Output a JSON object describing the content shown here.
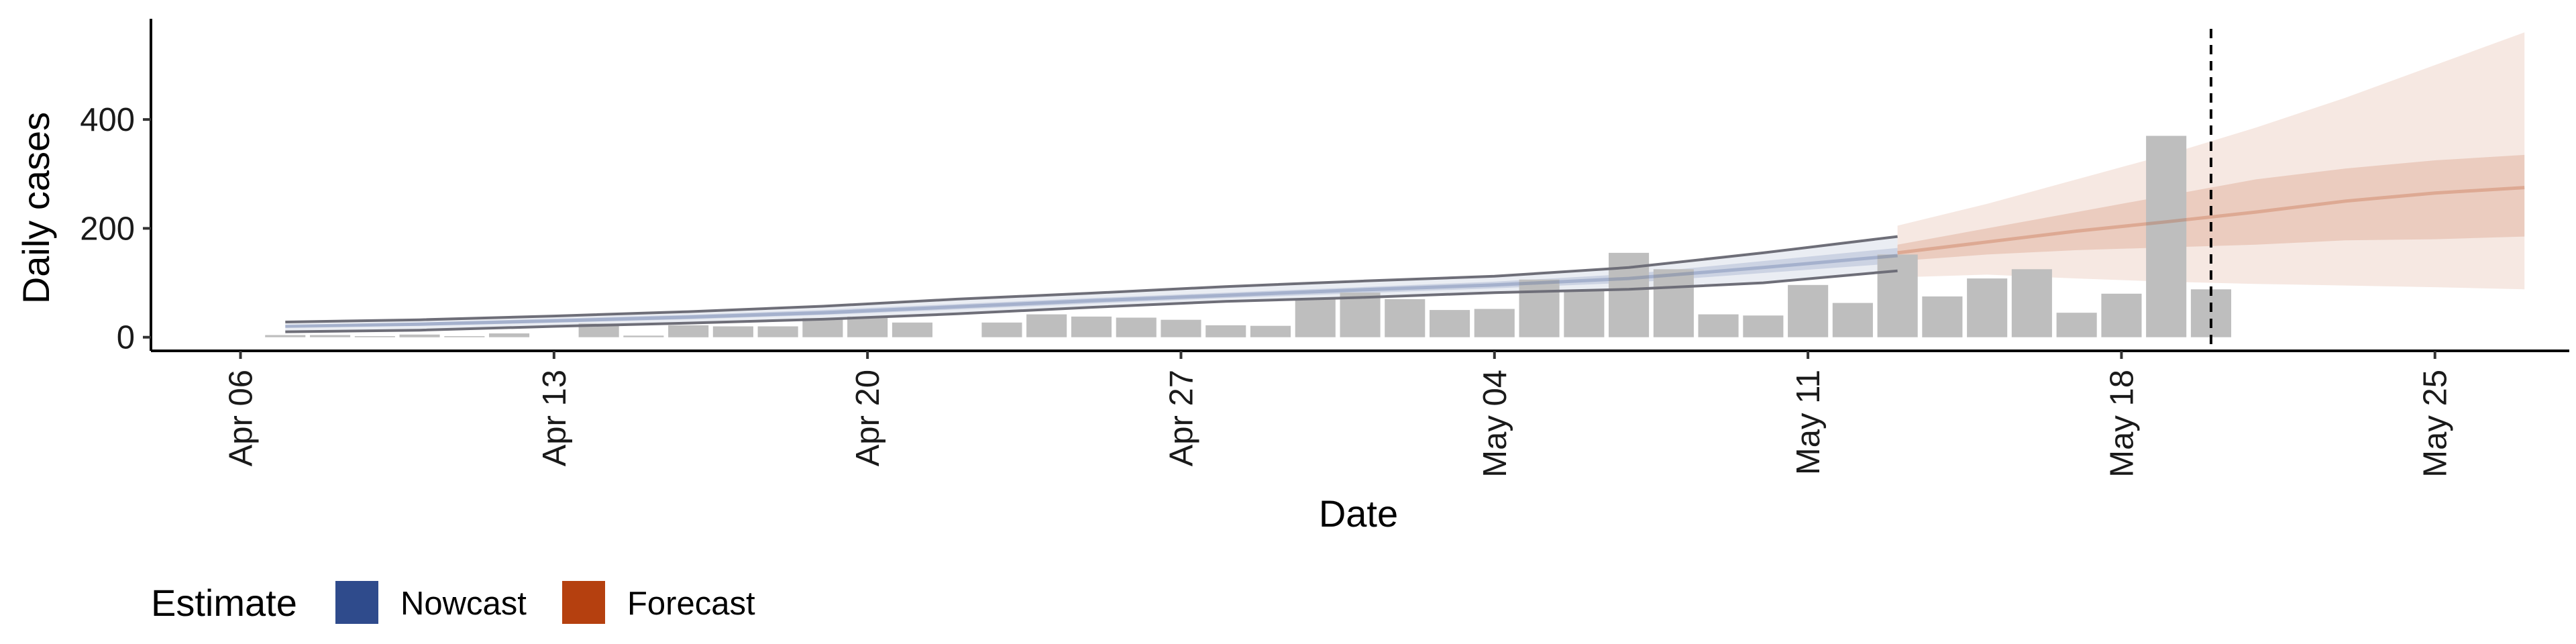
{
  "chart_data": {
    "type": "bar",
    "xlabel": "Date",
    "ylabel": "Daily cases",
    "x_tick_labels": [
      "Apr 06",
      "Apr 13",
      "Apr 20",
      "Apr 27",
      "May 04",
      "May 11",
      "May 18",
      "May 25"
    ],
    "x_tick_dates": [
      "2020-04-06",
      "2020-04-13",
      "2020-04-20",
      "2020-04-27",
      "2020-05-04",
      "2020-05-11",
      "2020-05-18",
      "2020-05-25"
    ],
    "xlim": [
      "2020-04-04",
      "2020-05-28"
    ],
    "y_ticks": [
      0,
      200,
      400
    ],
    "y_tick_labels": [
      "0",
      "200",
      "400"
    ],
    "ylim": [
      -25,
      585
    ],
    "grid": false,
    "legend_position": "bottom-left",
    "cutoff_date": "2020-05-20",
    "bars": {
      "color": "#bebebe",
      "dates": [
        "2020-04-07",
        "2020-04-08",
        "2020-04-09",
        "2020-04-10",
        "2020-04-11",
        "2020-04-12",
        "2020-04-13",
        "2020-04-14",
        "2020-04-15",
        "2020-04-16",
        "2020-04-17",
        "2020-04-18",
        "2020-04-19",
        "2020-04-20",
        "2020-04-21",
        "2020-04-22",
        "2020-04-23",
        "2020-04-24",
        "2020-04-25",
        "2020-04-26",
        "2020-04-27",
        "2020-04-28",
        "2020-04-29",
        "2020-04-30",
        "2020-05-01",
        "2020-05-02",
        "2020-05-03",
        "2020-05-04",
        "2020-05-05",
        "2020-05-06",
        "2020-05-07",
        "2020-05-08",
        "2020-05-09",
        "2020-05-10",
        "2020-05-11",
        "2020-05-12",
        "2020-05-13",
        "2020-05-14",
        "2020-05-15",
        "2020-05-16",
        "2020-05-17",
        "2020-05-18",
        "2020-05-19",
        "2020-05-20"
      ],
      "values": [
        4,
        4,
        2,
        5,
        2,
        7,
        0,
        25,
        3,
        22,
        20,
        20,
        35,
        38,
        27,
        0,
        27,
        42,
        38,
        36,
        32,
        22,
        21,
        70,
        82,
        70,
        50,
        52,
        106,
        85,
        155,
        125,
        42,
        40,
        96,
        63,
        152,
        75,
        108,
        125,
        45,
        80,
        370,
        88
      ]
    },
    "series": [
      {
        "name": "Nowcast",
        "color": "#2f4b8c",
        "x": [
          "2020-04-07",
          "2020-04-10",
          "2020-04-13",
          "2020-04-16",
          "2020-04-19",
          "2020-04-22",
          "2020-04-25",
          "2020-04-28",
          "2020-05-01",
          "2020-05-04",
          "2020-05-07",
          "2020-05-10",
          "2020-05-13"
        ],
        "median": [
          20,
          24,
          30,
          37,
          45,
          56,
          67,
          77,
          87,
          96,
          108,
          128,
          150
        ],
        "inner_lower": [
          18,
          21,
          27,
          33,
          41,
          51,
          62,
          72,
          81,
          90,
          100,
          118,
          136
        ],
        "inner_upper": [
          22,
          27,
          34,
          41,
          50,
          61,
          72,
          82,
          92,
          102,
          116,
          140,
          164
        ],
        "outer_lower": [
          10,
          13,
          20,
          26,
          33,
          43,
          55,
          66,
          73,
          82,
          88,
          100,
          122
        ],
        "outer_upper": [
          28,
          32,
          39,
          47,
          57,
          70,
          81,
          93,
          103,
          112,
          128,
          155,
          185
        ]
      },
      {
        "name": "Forecast",
        "color": "#b5400f",
        "x": [
          "2020-05-13",
          "2020-05-15",
          "2020-05-17",
          "2020-05-19",
          "2020-05-21",
          "2020-05-23",
          "2020-05-25",
          "2020-05-27"
        ],
        "median": [
          155,
          175,
          195,
          212,
          230,
          250,
          265,
          275
        ],
        "inner_lower": [
          140,
          152,
          160,
          165,
          170,
          178,
          180,
          185
        ],
        "inner_upper": [
          170,
          200,
          230,
          260,
          290,
          310,
          325,
          335
        ],
        "outer_lower": [
          110,
          115,
          108,
          102,
          98,
          95,
          92,
          88
        ],
        "outer_upper": [
          205,
          245,
          290,
          335,
          385,
          440,
          500,
          560
        ]
      }
    ]
  },
  "legend": {
    "title": "Estimate",
    "items": [
      {
        "label": "Nowcast",
        "color": "#2f4b8c"
      },
      {
        "label": "Forecast",
        "color": "#b5400f"
      }
    ]
  }
}
